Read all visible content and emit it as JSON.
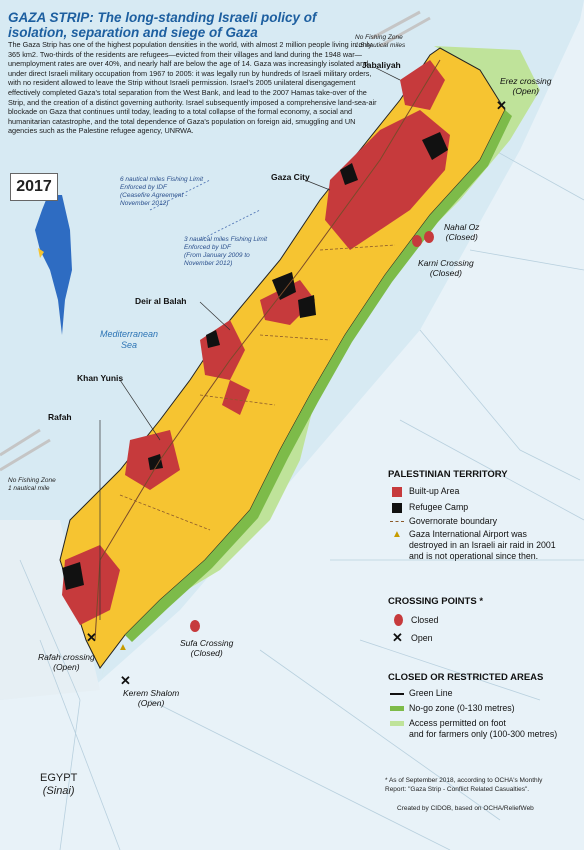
{
  "title": "GAZA STRIP: The long-standing Israeli policy of isolation, separation and siege of Gaza",
  "intro": "The Gaza Strip has one of the highest population densities in the world, with almost 2 million people living in only 365 km2. Two-thirds of the residents are refugees—evicted from their villages and land during the 1948 war—unemployment rates are over 40%, and nearly half are below the age of 14. Gaza was increasingly isolated and under direct Israeli military occupation from 1967 to 2005: it was legally run by hundreds of Israeli military orders, with no resident allowed to leave the Strip without Israeli permission. Israel's 2005 unilateral disengagement effectively completed Gaza's total separation from the West Bank, and lead to the 2007 Hamas take-over of the Strip, and the creation of a distinct governing authority. Israel subsequently imposed a comprehensive land-sea-air blockade on Gaza that continues until today, leading to a total collapse of the formal economy, a social and humanitarian catastrophe, and the total dependence of Gaza's population on foreign aid, smuggling and UN agencies such as the Palestine refugee agency, UNRWA.",
  "year_badge": "2017",
  "places": {
    "jabaliyah": "Jabaliyah",
    "gaza_city": "Gaza City",
    "deir_al_balah": "Deir al Balah",
    "khan_yunis": "Khan Yunis",
    "rafah": "Rafah"
  },
  "crossings": {
    "erez": "Erez crossing",
    "erez_status": "(Open)",
    "nahal_oz": "Nahal Oz",
    "nahal_oz_status": "(Closed)",
    "karni": "Karni Crossing",
    "karni_status": "(Closed)",
    "sufa": "Sufa Crossing",
    "sufa_status": "(Closed)",
    "rafah": "Rafah crossing",
    "rafah_status": "(Open)",
    "kerem": "Kerem Shalom",
    "kerem_status": "(Open)"
  },
  "sea_notes": {
    "six_nm_1": "6 nautical miles Fishing Limit",
    "six_nm_2": "Enforced by IDF",
    "six_nm_3": "(Ceasefire Agreement -",
    "six_nm_4": "November 2012)",
    "three_nm_1": "3 nautical miles Fishing Limit",
    "three_nm_2": "Enforced by IDF",
    "three_nm_3": "(From January 2009 to",
    "three_nm_4": "November 2012)",
    "nfz_north_1": "No Fishing Zone",
    "nfz_north_2": "1.5 nautical miles",
    "nfz_south_1": "No Fishing Zone",
    "nfz_south_2": "1 nautical mile",
    "sea_1": "Mediterranean",
    "sea_2": "Sea"
  },
  "egypt_1": "EGYPT",
  "egypt_2": "(Sinai)",
  "legend": {
    "territory_title": "PALESTINIAN TERRITORY",
    "built_up": "Built-up Area",
    "refugee_camp": "Refugee Camp",
    "boundary": "Governorate boundary",
    "airport_1": "Gaza International Airport was",
    "airport_2": "destroyed in an Israeli air raid in 2001",
    "airport_3": "and is not operational since then.",
    "crossing_title": "CROSSING POINTS *",
    "closed": "Closed",
    "open": "Open",
    "areas_title": "CLOSED OR RESTRICTED AREAS",
    "green_line": "Green Line",
    "no_go": "No-go zone (0-130 metres)",
    "access_1": "Access permitted on foot",
    "access_2": "and for farmers only (100-300 metres)"
  },
  "footnote_1": "* As of September 2018, according to OCHA's Monthly",
  "footnote_2": "Report: \"Gaza Strip - Conflict Related Casualties\".",
  "credit": "Created by CIDOB, based on OCHA/ReliefWeb",
  "colors": {
    "sea": "#d7eaf3",
    "land": "#e6f1f7",
    "gaza_yellow": "#f6c431",
    "built_up": "#c63a3c",
    "refugee_camp": "#111111",
    "no_go": "#7dbb49",
    "access": "#bfe39a",
    "title_blue": "#1d5fa0"
  }
}
